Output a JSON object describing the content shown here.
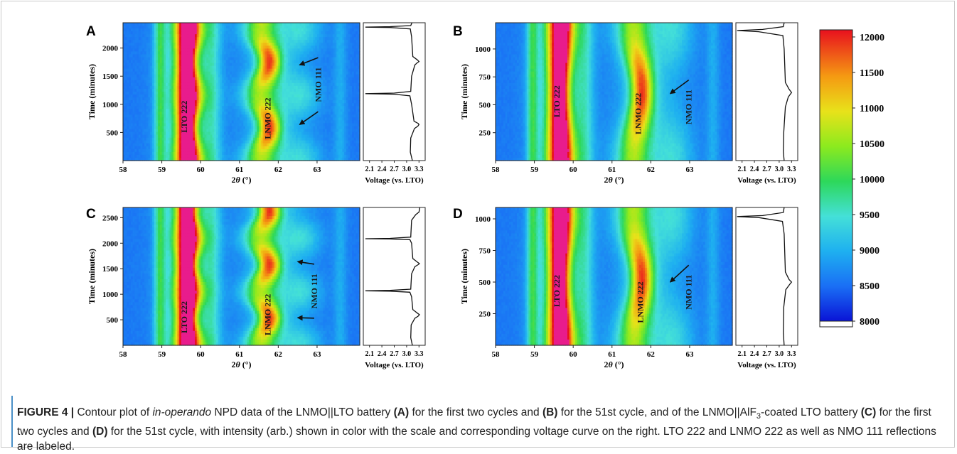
{
  "chart_data": [
    {
      "type": "heatmap",
      "panel": "A",
      "xlabel_prefix": "2",
      "xlabel_var": "θ",
      "xlabel_unit": " (°)",
      "ylabel": "Time  (minutes)",
      "xticks": [
        "58",
        "59",
        "60",
        "61",
        "62",
        "63"
      ],
      "yticks": [
        "500",
        "1000",
        "1500",
        "2000"
      ],
      "xlim": [
        58,
        64.1
      ],
      "ylim": [
        0,
        2450
      ],
      "labels": [
        {
          "text": "LTO 222",
          "x": 59.65,
          "y": 780
        },
        {
          "text": "LNMO 222",
          "x": 61.8,
          "y": 750
        },
        {
          "text": "NMO 111",
          "x": 63.1,
          "y": 1350
        }
      ],
      "arrow_tips": [
        {
          "x": 62.55,
          "y": 1700
        },
        {
          "x": 62.55,
          "y": 640
        }
      ],
      "voltage": {
        "xlabel": "Voltage (vs. LTO)",
        "xticks": [
          "2.1",
          "2.4",
          "2.7",
          "3.0",
          "3.3"
        ],
        "xlim": [
          1.95,
          3.45
        ],
        "curve": [
          [
            3.14,
            0
          ],
          [
            3.09,
            150
          ],
          [
            3.1,
            400
          ],
          [
            3.19,
            570
          ],
          [
            3.27,
            610
          ],
          [
            3.3,
            640
          ],
          [
            3.28,
            660
          ],
          [
            3.18,
            700
          ],
          [
            3.12,
            1000
          ],
          [
            3.08,
            1150
          ],
          [
            2.7,
            1180
          ],
          [
            2.0,
            1190
          ],
          [
            2.7,
            1200
          ],
          [
            3.1,
            1230
          ],
          [
            3.12,
            1500
          ],
          [
            3.2,
            1700
          ],
          [
            3.26,
            1740
          ],
          [
            3.3,
            1760
          ],
          [
            3.26,
            1790
          ],
          [
            3.15,
            1850
          ],
          [
            3.12,
            2200
          ],
          [
            3.09,
            2340
          ],
          [
            2.6,
            2365
          ],
          [
            2.0,
            2372
          ],
          [
            2.6,
            2380
          ],
          [
            3.1,
            2400
          ],
          [
            3.13,
            2450
          ]
        ]
      }
    },
    {
      "type": "heatmap",
      "panel": "B",
      "xlabel_prefix": "2",
      "xlabel_var": "θ",
      "xlabel_unit": " (°)",
      "ylabel": "Time  (minutes)",
      "xticks": [
        "58",
        "59",
        "60",
        "61",
        "62",
        "63"
      ],
      "yticks": [
        "250",
        "500",
        "750",
        "1000"
      ],
      "xlim": [
        58,
        64.1
      ],
      "ylim": [
        0,
        1235
      ],
      "labels": [
        {
          "text": "LTO 222",
          "x": 59.65,
          "y": 530
        },
        {
          "text": "LNMO 222",
          "x": 61.75,
          "y": 420
        },
        {
          "text": "NMO 111",
          "x": 63.05,
          "y": 480
        }
      ],
      "arrow_tips": [
        {
          "x": 62.5,
          "y": 600
        }
      ],
      "voltage": {
        "xlabel": "Voltage (vs. LTO)",
        "xticks": [
          "2.1",
          "2.4",
          "2.7",
          "3.0",
          "3.3"
        ],
        "xlim": [
          1.95,
          3.45
        ],
        "curve": [
          [
            3.12,
            0
          ],
          [
            3.1,
            80
          ],
          [
            3.11,
            250
          ],
          [
            3.15,
            480
          ],
          [
            3.22,
            570
          ],
          [
            3.3,
            610
          ],
          [
            3.24,
            640
          ],
          [
            3.15,
            700
          ],
          [
            3.12,
            1000
          ],
          [
            3.09,
            1120
          ],
          [
            2.5,
            1155
          ],
          [
            1.98,
            1165
          ],
          [
            2.6,
            1175
          ],
          [
            3.1,
            1200
          ],
          [
            3.12,
            1235
          ]
        ]
      }
    },
    {
      "type": "heatmap",
      "panel": "C",
      "xlabel_prefix": "2",
      "xlabel_var": "θ",
      "xlabel_unit": " (°)",
      "ylabel": "Time  (minutes)",
      "xticks": [
        "58",
        "59",
        "60",
        "61",
        "62",
        "63"
      ],
      "yticks": [
        "500",
        "1000",
        "1500",
        "2000",
        "2500"
      ],
      "xlim": [
        58,
        64.1
      ],
      "ylim": [
        0,
        2700
      ],
      "labels": [
        {
          "text": "LTO 222",
          "x": 59.65,
          "y": 550
        },
        {
          "text": "LNMO 222",
          "x": 61.8,
          "y": 600
        },
        {
          "text": "NMO 111",
          "x": 63.0,
          "y": 1060
        }
      ],
      "arrow_tips": [
        {
          "x": 62.5,
          "y": 1640
        },
        {
          "x": 62.5,
          "y": 540
        }
      ],
      "voltage": {
        "xlabel": "Voltage (vs. LTO)",
        "xticks": [
          "2.1",
          "2.4",
          "2.7",
          "3.0",
          "3.3"
        ],
        "xlim": [
          1.95,
          3.45
        ],
        "curve": [
          [
            3.14,
            0
          ],
          [
            3.1,
            150
          ],
          [
            3.11,
            400
          ],
          [
            3.2,
            530
          ],
          [
            3.28,
            570
          ],
          [
            3.31,
            600
          ],
          [
            3.26,
            630
          ],
          [
            3.15,
            700
          ],
          [
            3.12,
            950
          ],
          [
            3.08,
            1040
          ],
          [
            2.6,
            1060
          ],
          [
            2.0,
            1068
          ],
          [
            2.6,
            1076
          ],
          [
            3.1,
            1100
          ],
          [
            3.12,
            1400
          ],
          [
            3.2,
            1540
          ],
          [
            3.28,
            1580
          ],
          [
            3.31,
            1600
          ],
          [
            3.26,
            1630
          ],
          [
            3.15,
            1700
          ],
          [
            3.12,
            2000
          ],
          [
            3.08,
            2070
          ],
          [
            2.6,
            2082
          ],
          [
            2.0,
            2088
          ],
          [
            2.6,
            2094
          ],
          [
            3.1,
            2120
          ],
          [
            3.12,
            2450
          ],
          [
            3.22,
            2560
          ],
          [
            3.3,
            2610
          ],
          [
            3.32,
            2700
          ]
        ]
      }
    },
    {
      "type": "heatmap",
      "panel": "D",
      "xlabel_prefix": "2",
      "xlabel_var": "θ",
      "xlabel_unit": " (°)",
      "ylabel": "Time  (minutes)",
      "xticks": [
        "58",
        "59",
        "60",
        "61",
        "62",
        "63"
      ],
      "yticks": [
        "250",
        "500",
        "750",
        "1000"
      ],
      "xlim": [
        58,
        64.1
      ],
      "ylim": [
        0,
        1090
      ],
      "labels": [
        {
          "text": "LTO 222",
          "x": 59.65,
          "y": 430
        },
        {
          "text": "LNMO 222",
          "x": 61.8,
          "y": 340
        },
        {
          "text": "NMO 111",
          "x": 63.05,
          "y": 420
        }
      ],
      "arrow_tips": [
        {
          "x": 62.5,
          "y": 500
        }
      ],
      "voltage": {
        "xlabel": "Voltage (vs. LTO)",
        "xticks": [
          "2.1",
          "2.4",
          "2.7",
          "3.0",
          "3.3"
        ],
        "xlim": [
          1.95,
          3.45
        ],
        "curve": [
          [
            3.12,
            0
          ],
          [
            3.1,
            100
          ],
          [
            3.11,
            300
          ],
          [
            3.16,
            440
          ],
          [
            3.25,
            480
          ],
          [
            3.3,
            500
          ],
          [
            3.24,
            520
          ],
          [
            3.15,
            580
          ],
          [
            3.12,
            880
          ],
          [
            3.08,
            980
          ],
          [
            2.5,
            1010
          ],
          [
            1.98,
            1018
          ],
          [
            2.6,
            1026
          ],
          [
            3.1,
            1050
          ],
          [
            3.12,
            1090
          ]
        ]
      }
    }
  ],
  "colorbar": {
    "ticks": [
      "12000",
      "11500",
      "11000",
      "10500",
      "10000",
      "9500",
      "9000",
      "8500",
      "8000"
    ],
    "range": [
      8000,
      12100
    ]
  },
  "caption": {
    "head": "FIGURE 4 |",
    "parts": [
      {
        "t": " Contour plot of ",
        "s": "n"
      },
      {
        "t": "in-operando",
        "s": "i"
      },
      {
        "t": " NPD data of the LNMO||LTO battery ",
        "s": "n"
      },
      {
        "t": "(A)",
        "s": "b"
      },
      {
        "t": " for the first two cycles and ",
        "s": "n"
      },
      {
        "t": "(B)",
        "s": "b"
      },
      {
        "t": " for the 51st cycle, and of the LNMO||AlF",
        "s": "n"
      },
      {
        "t": "3",
        "s": "sub"
      },
      {
        "t": "-coated LTO battery ",
        "s": "n"
      },
      {
        "t": "(C)",
        "s": "b"
      },
      {
        "t": " for the first two cycles and ",
        "s": "n"
      },
      {
        "t": "(D)",
        "s": "b"
      },
      {
        "t": " for the 51st cycle, with intensity (arb.) shown in color with the scale and corresponding voltage curve on the right. LTO 222 and LNMO 222 as well as NMO 111 reflections are labeled.",
        "s": "n"
      }
    ]
  }
}
